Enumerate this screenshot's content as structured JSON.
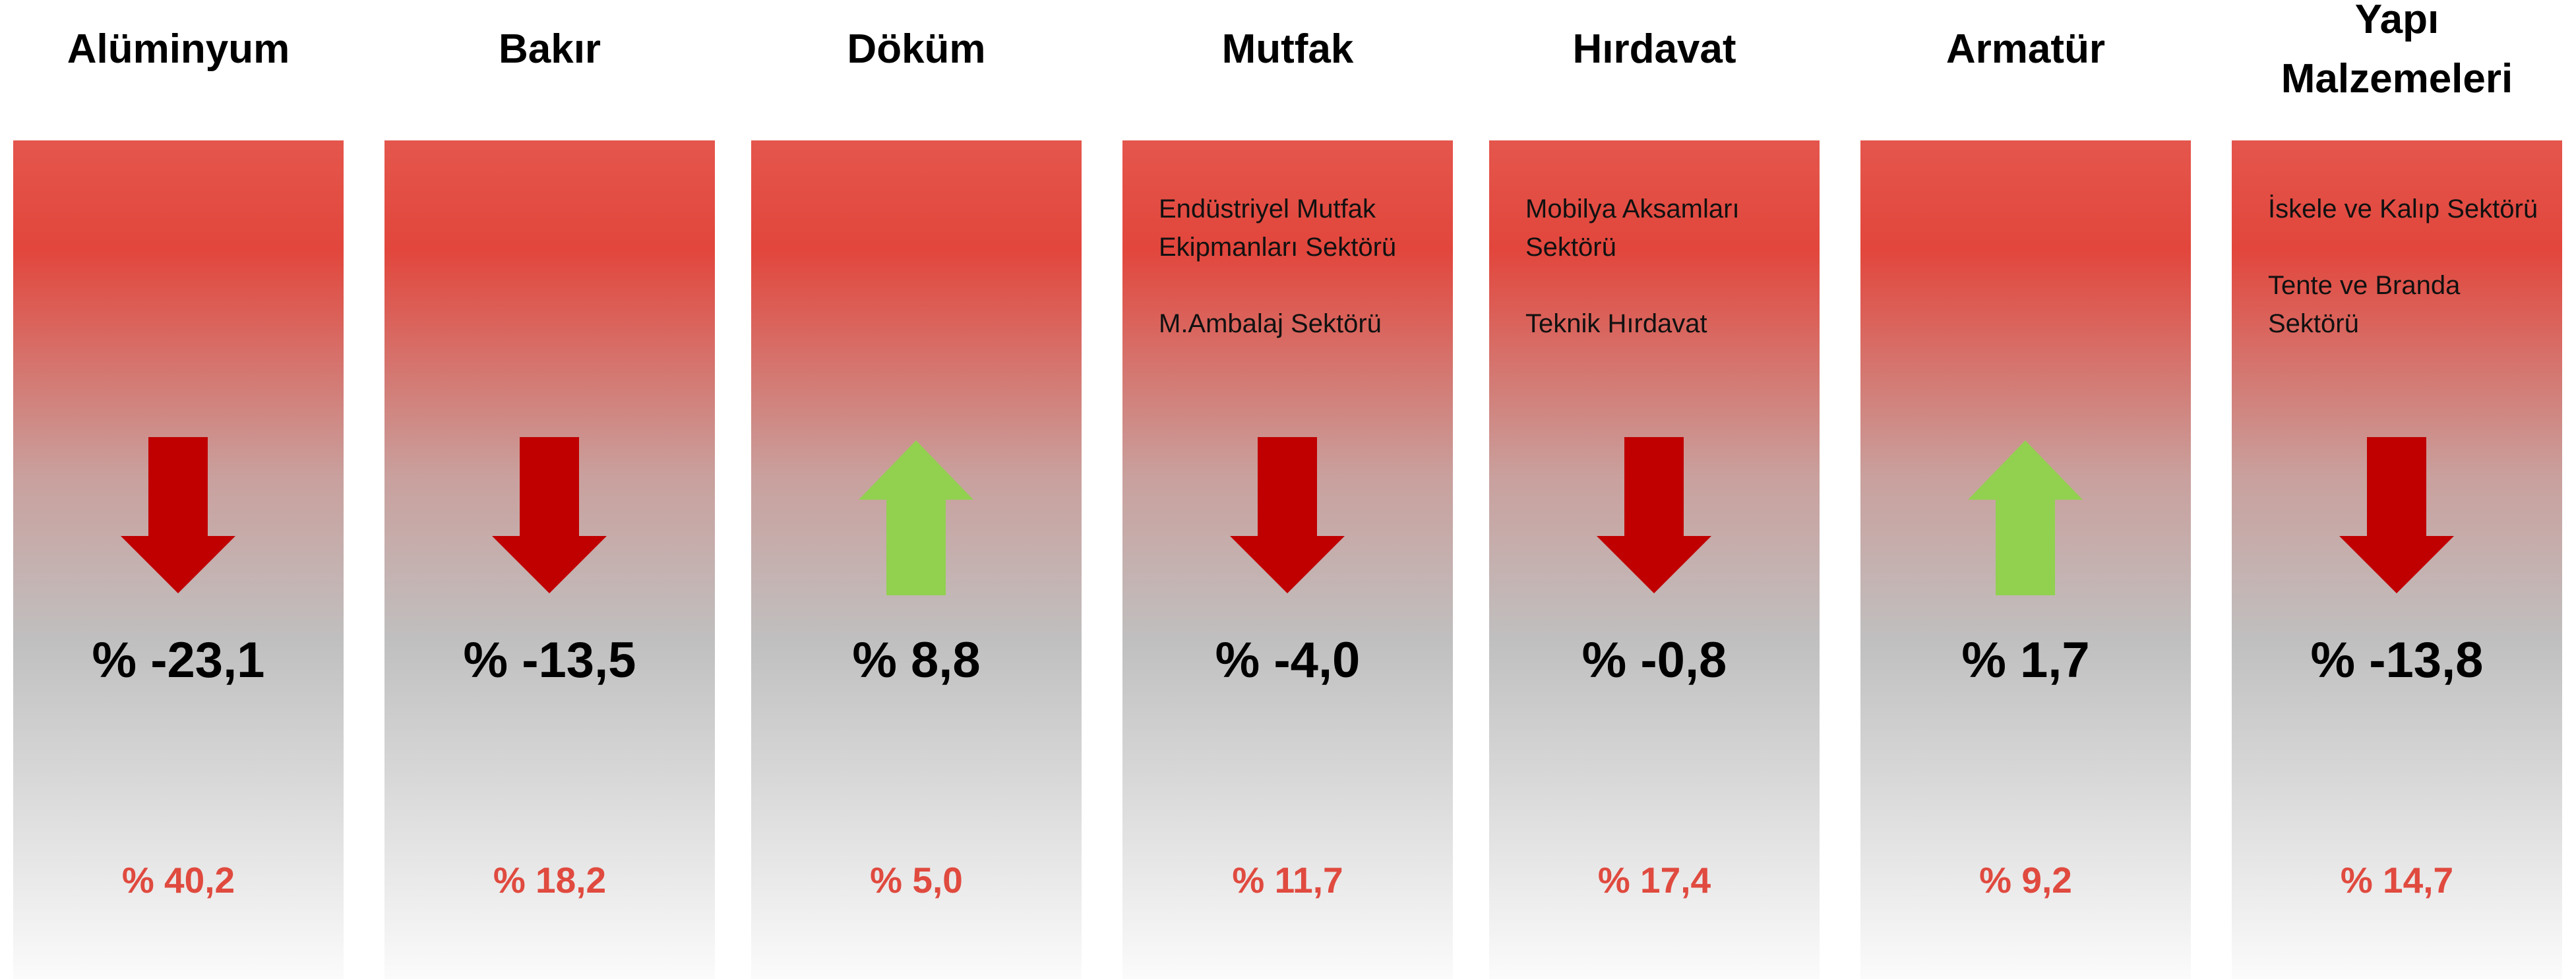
{
  "columns": [
    {
      "title": "Alüminyum",
      "notes": [],
      "change": "% -23,1",
      "direction": "down",
      "share": "% 40,2"
    },
    {
      "title": "Bakır",
      "notes": [],
      "change": "% -13,5",
      "direction": "down",
      "share": "% 18,2"
    },
    {
      "title": "Döküm",
      "notes": [],
      "change": "% 8,8",
      "direction": "up",
      "share": "% 5,0"
    },
    {
      "title": "Mutfak",
      "notes": [
        "Endüstriyel Mutfak Ekipmanları Sektörü",
        "M.Ambalaj Sektörü"
      ],
      "change": "% -4,0",
      "direction": "down",
      "share": "% 11,7"
    },
    {
      "title": "Hırdavat",
      "notes": [
        "Mobilya Aksamları Sektörü",
        "Teknik Hırdavat"
      ],
      "change": "% -0,8",
      "direction": "down",
      "share": "% 17,4"
    },
    {
      "title": "Armatür",
      "notes": [],
      "change": "% 1,7",
      "direction": "up",
      "share": "% 9,2"
    },
    {
      "title": "Yapı Malzemeleri",
      "notes": [
        "İskele ve Kalıp Sektörü",
        "Tente ve Branda Sektörü"
      ],
      "change": "% -13,8",
      "direction": "down",
      "share": "% 14,7"
    }
  ]
}
